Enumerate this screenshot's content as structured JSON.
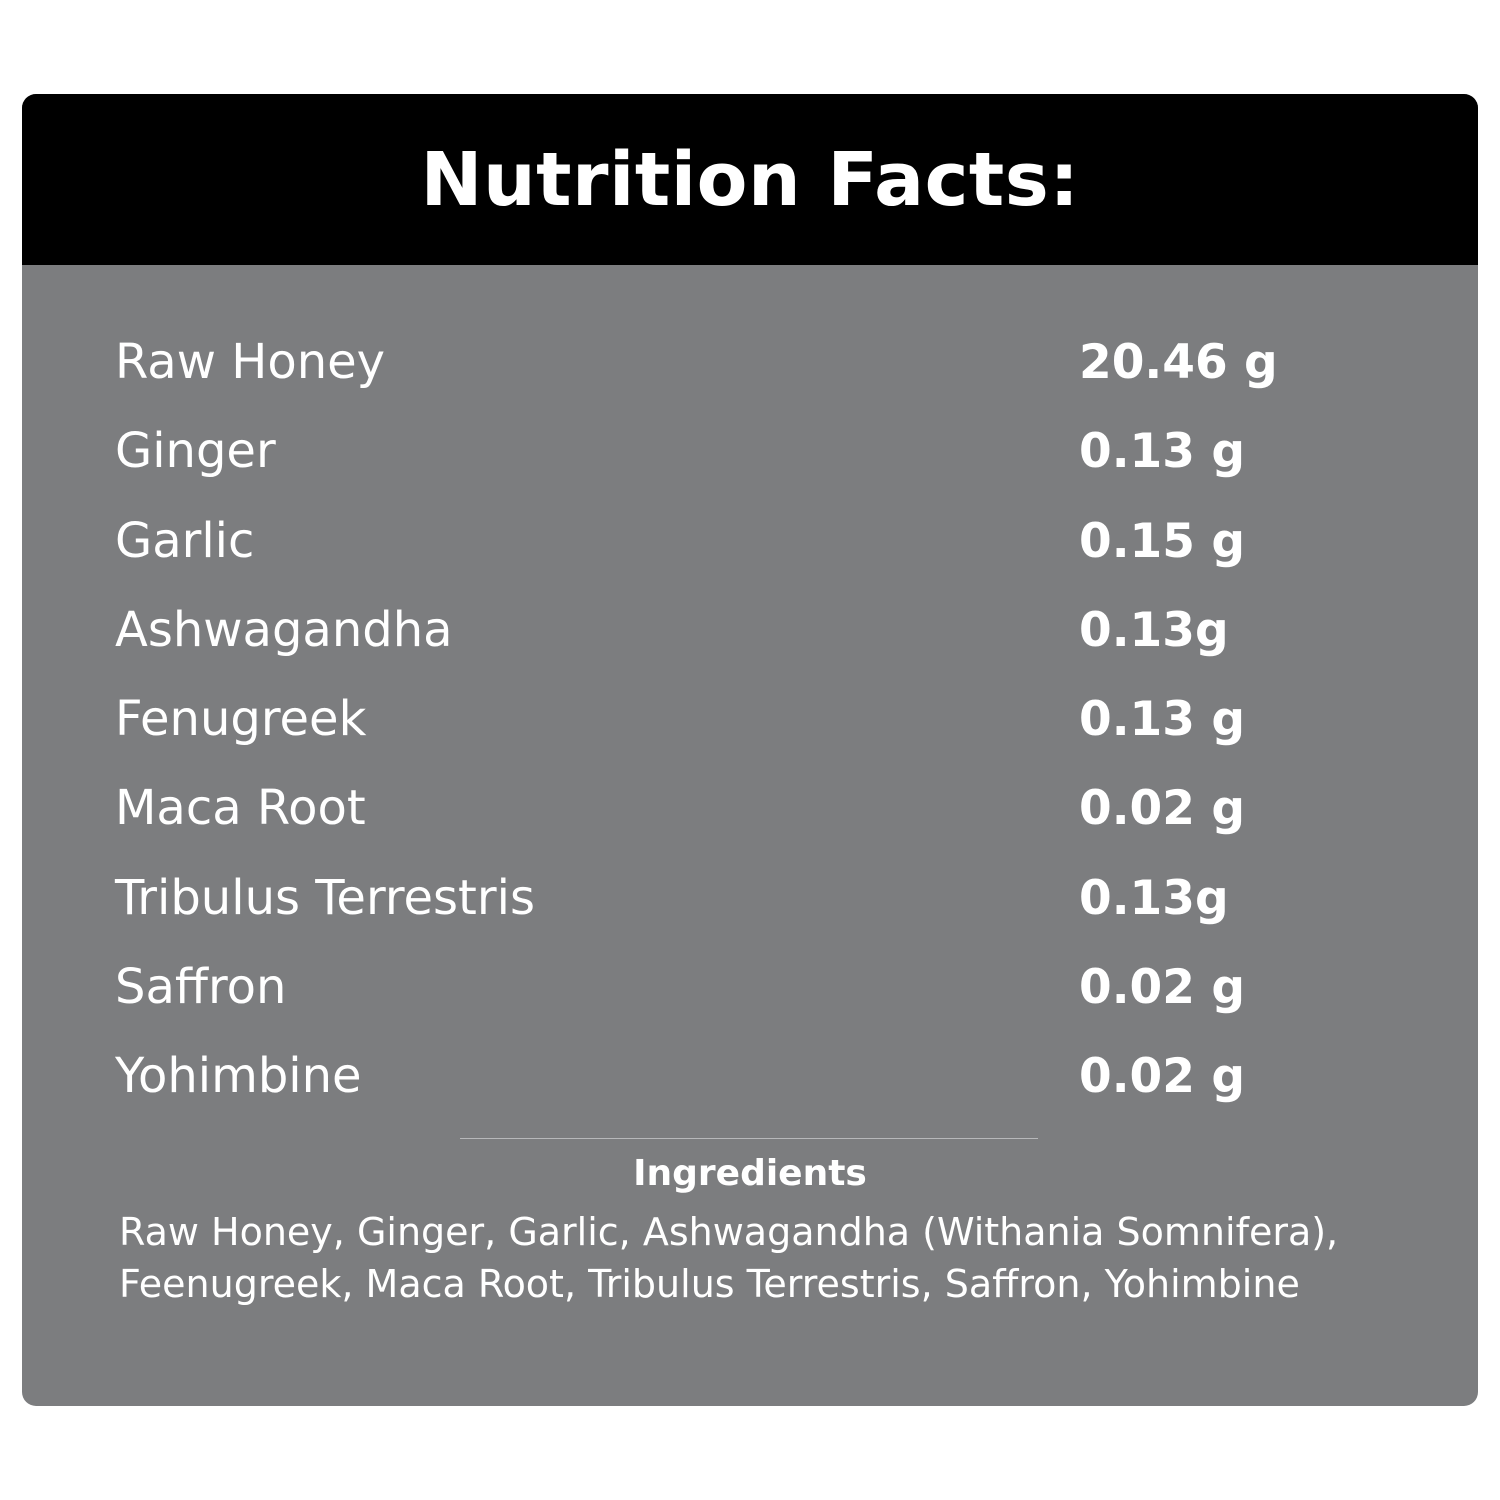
{
  "header": {
    "title": "Nutrition Facts:"
  },
  "facts": [
    {
      "name": "Raw Honey",
      "amount": "20.46 g"
    },
    {
      "name": "Ginger",
      "amount": "0.13 g"
    },
    {
      "name": "Garlic",
      "amount": "0.15 g"
    },
    {
      "name": "Ashwagandha",
      "amount": "0.13g"
    },
    {
      "name": "Fenugreek",
      "amount": "0.13 g"
    },
    {
      "name": "Maca Root",
      "amount": "0.02 g"
    },
    {
      "name": "Tribulus Terrestris",
      "amount": "0.13g"
    },
    {
      "name": "Saffron",
      "amount": "0.02 g"
    },
    {
      "name": "Yohimbine",
      "amount": "0.02 g"
    }
  ],
  "ingredients": {
    "title": "Ingredients",
    "line1": "Raw Honey, Ginger, Garlic, Ashwagandha (Withania Somnifera),",
    "line2": "Feenugreek, Maca Root, Tribulus Terrestris, Saffron, Yohimbine"
  },
  "colors": {
    "header_bg": "#000000",
    "panel_bg": "#7c7d7f",
    "text": "#ffffff",
    "divider": "#b7b8ba"
  }
}
